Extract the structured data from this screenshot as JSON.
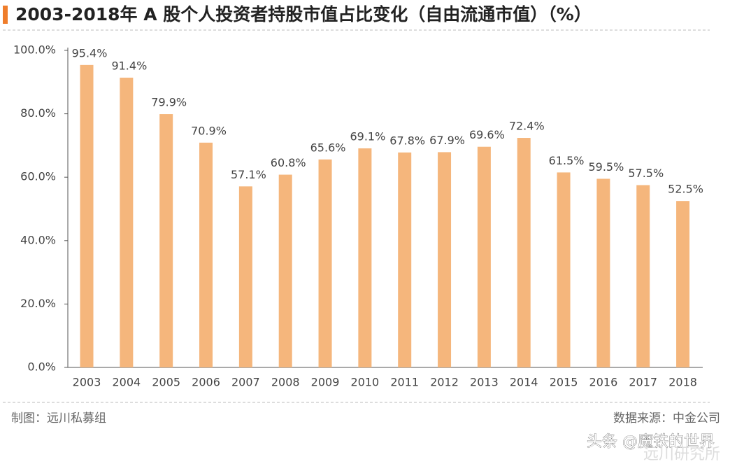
{
  "chart_data": {
    "type": "bar",
    "title": "2003-2018年 A 股个人投资者持股市值占比变化（自由流通市值）（%）",
    "categories": [
      "2003",
      "2004",
      "2005",
      "2006",
      "2007",
      "2008",
      "2009",
      "2010",
      "2011",
      "2012",
      "2013",
      "2014",
      "2015",
      "2016",
      "2017",
      "2018"
    ],
    "values": [
      95.4,
      91.4,
      79.9,
      70.9,
      57.1,
      60.8,
      65.6,
      69.1,
      67.8,
      67.9,
      69.6,
      72.4,
      61.5,
      59.5,
      57.5,
      52.5
    ],
    "value_labels": [
      "95.4%",
      "91.4%",
      "79.9%",
      "70.9%",
      "57.1%",
      "60.8%",
      "65.6%",
      "69.1%",
      "67.8%",
      "67.9%",
      "69.6%",
      "72.4%",
      "61.5%",
      "59.5%",
      "57.5%",
      "52.5%"
    ],
    "color": "#f5b67c",
    "ylim": [
      0,
      100
    ],
    "yticks": [
      {
        "value": 0,
        "label": "0.0%"
      },
      {
        "value": 20,
        "label": "20.0%"
      },
      {
        "value": 40,
        "label": "40.0%"
      },
      {
        "value": 60,
        "label": "60.0%"
      },
      {
        "value": 80,
        "label": "80.0%"
      },
      {
        "value": 100,
        "label": "100.0%"
      }
    ],
    "grid": false,
    "source_left": "制图：远川私募组",
    "source_right": "数据来源：中金公司",
    "watermark": "头条 @魔铁的世界",
    "logo": "远川研究所"
  }
}
